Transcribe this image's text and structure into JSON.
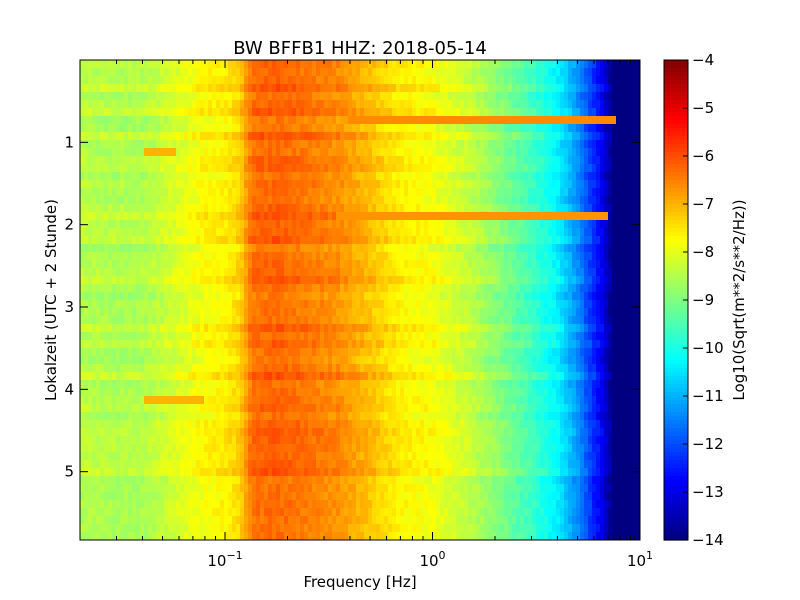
{
  "chart_data": {
    "type": "heatmap",
    "title": "BW BFFB1 HHZ: 2018-05-14",
    "xlabel": "Frequency [Hz]",
    "ylabel": "Lokalzeit (UTC + 2 Stunde)",
    "x_scale": "log",
    "xlim": [
      0.02,
      10
    ],
    "x_ticks": [
      {
        "value": 0.1,
        "base": "10",
        "exp": "−1"
      },
      {
        "value": 1,
        "base": "10",
        "exp": "0"
      },
      {
        "value": 10,
        "base": "10",
        "exp": "1"
      }
    ],
    "ylim": [
      0,
      5.83
    ],
    "y_inverted": true,
    "y_ticks": [
      {
        "value": 1,
        "label": "1"
      },
      {
        "value": 2,
        "label": "2"
      },
      {
        "value": 3,
        "label": "3"
      },
      {
        "value": 4,
        "label": "4"
      },
      {
        "value": 5,
        "label": "5"
      }
    ],
    "colorbar": {
      "label": "Log10(Sqrt(m**2/s**2/Hz))",
      "range": [
        -14,
        -4
      ],
      "colormap": "jet",
      "ticks": [
        {
          "value": -4,
          "label": "−4"
        },
        {
          "value": -5,
          "label": "−5"
        },
        {
          "value": -6,
          "label": "−6"
        },
        {
          "value": -7,
          "label": "−7"
        },
        {
          "value": -8,
          "label": "−8"
        },
        {
          "value": -9,
          "label": "−9"
        },
        {
          "value": -10,
          "label": "−10"
        },
        {
          "value": -11,
          "label": "−11"
        },
        {
          "value": -12,
          "label": "−12"
        },
        {
          "value": -13,
          "label": "−13"
        },
        {
          "value": -14,
          "label": "−14"
        }
      ]
    },
    "spectrum_profile": [
      {
        "f": 0.02,
        "v": -8.4
      },
      {
        "f": 0.03,
        "v": -8.5
      },
      {
        "f": 0.04,
        "v": -8.5
      },
      {
        "f": 0.058,
        "v": -8.1
      },
      {
        "f": 0.08,
        "v": -7.7
      },
      {
        "f": 0.1,
        "v": -7.6
      },
      {
        "f": 0.118,
        "v": -7.3
      },
      {
        "f": 0.135,
        "v": -6.3
      },
      {
        "f": 0.18,
        "v": -6.2
      },
      {
        "f": 0.25,
        "v": -6.4
      },
      {
        "f": 0.35,
        "v": -6.6
      },
      {
        "f": 0.5,
        "v": -7.1
      },
      {
        "f": 0.7,
        "v": -7.6
      },
      {
        "f": 1.0,
        "v": -7.8
      },
      {
        "f": 1.5,
        "v": -8.3
      },
      {
        "f": 2.0,
        "v": -8.8
      },
      {
        "f": 3.0,
        "v": -9.6
      },
      {
        "f": 4.0,
        "v": -10.3
      },
      {
        "f": 5.0,
        "v": -11.3
      },
      {
        "f": 6.5,
        "v": -12.8
      },
      {
        "f": 7.5,
        "v": -14.0
      },
      {
        "f": 10,
        "v": -14.0
      }
    ],
    "features": [
      {
        "kind": "line",
        "time": 0.75,
        "f_from": 0.4,
        "f_to": 7.5,
        "v": -6.6
      },
      {
        "kind": "line",
        "time": 1.93,
        "f_from": 0.35,
        "f_to": 7.0,
        "v": -6.7
      },
      {
        "kind": "patch",
        "time": 1.15,
        "f_from": 0.04,
        "f_to": 0.058,
        "v": -7.0
      },
      {
        "kind": "patch",
        "time": 4.12,
        "f_from": 0.04,
        "f_to": 0.08,
        "v": -7.0
      }
    ]
  }
}
